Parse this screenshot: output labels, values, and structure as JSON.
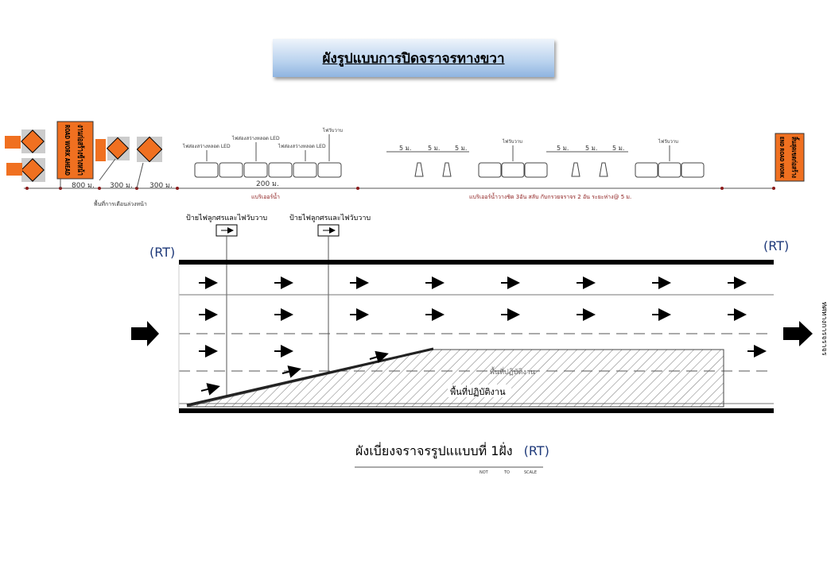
{
  "title": "ผังรูปแบบการปิดจราจรทางขวา",
  "signs": {
    "road_work_ahead": "ROAD WORK AHEAD",
    "road_work_ahead_th": "งานก่อสร้างข้างหน้า",
    "end_road_work": "END ROAD WORK",
    "end_road_work_th": "สิ้นสุดเขตก่อสร้าง"
  },
  "distances": [
    "800 ม.",
    "300 ม.",
    "300 ม.",
    "200 ม."
  ],
  "spacing": [
    "5 ม.",
    "5 ม.",
    "5 ม.",
    "5 ม.",
    "5 ม.",
    "5 ม."
  ],
  "led_labels": [
    "ไฟส่องสว่างหลอด LED",
    "ไฟส่องสว่างหลอด LED",
    "ไฟส่องสว่างหลอด LED"
  ],
  "flash_labels": [
    "ไฟวับวาบ",
    "ไฟวับวาบ",
    "ไฟวับวาบ"
  ],
  "warning_area": "พื้นที่การเตือนล่วงหน้า",
  "barrier_label": "แบริเออร์น้ำ",
  "barrier_cone_label": "แบริเออร์น้ำวางชิด 3อัน สลับ กับกรวยจราจร 2 อัน  ระยะห่าง@ 5 ม.",
  "arrow_board_labels": [
    "ป้ายไฟลูกศรและไฟวับวาบ",
    "ป้ายไฟลูกศรและไฟวับวาบ"
  ],
  "rt": "(RT)",
  "work_area": "พื้นที่ปฏิบัติงาน",
  "work_area_faint": "พื้นที่ปฏิบัติงาน",
  "direction": "ทิศทางการจราจร",
  "caption": "ผังเบี่ยงจราจรรูปแแบบที่ 1ฝั่ง",
  "scale": [
    "NOT",
    "TO",
    "SCALE"
  ],
  "colors": {
    "sign_orange": "#f07020",
    "dim_red": "#8b1a1a",
    "title_blue": "#b9d2ee",
    "rt_blue": "#1f3a7a"
  }
}
